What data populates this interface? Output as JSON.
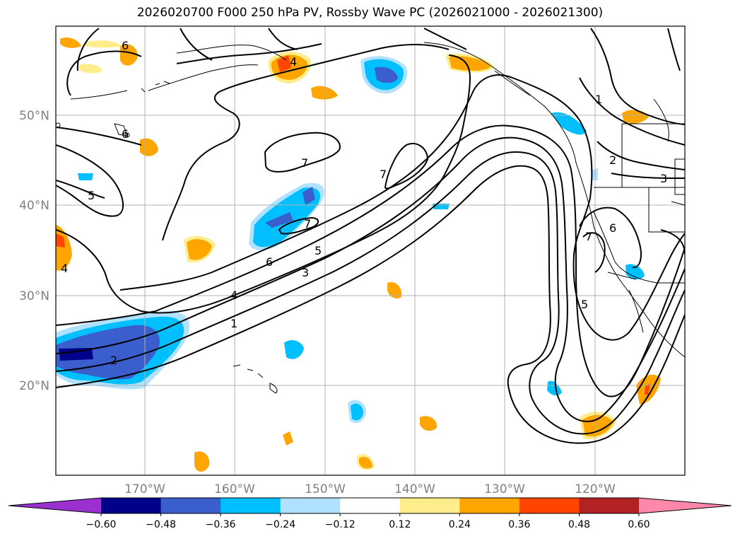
{
  "title": "2026020700 F000 250 hPa PV, Rossby Wave PC (2026021000 - 2026021300)",
  "lat_labels": [
    "50°N",
    "40°N",
    "30°N",
    "20°N"
  ],
  "lon_labels": [
    "170°W",
    "160°W",
    "150°W",
    "140°W",
    "130°W",
    "120°W"
  ],
  "contour_labels": [
    "6",
    "4",
    "6",
    "5",
    "7",
    "7",
    "7",
    "5",
    "6",
    "4",
    "3",
    "1",
    "2",
    "1",
    "2",
    "3",
    "6",
    "7",
    "5",
    "4"
  ],
  "colorbar": {
    "ticks": [
      "−0.60",
      "−0.48",
      "−0.36",
      "−0.24",
      "−0.12",
      "0.12",
      "0.24",
      "0.36",
      "0.48",
      "0.60"
    ],
    "colors": [
      "#9b30d0",
      "#00008b",
      "#3a5fcd",
      "#00bfff",
      "#b0e2ff",
      "#ffffff",
      "#ffec8b",
      "#ffa500",
      "#ff4500",
      "#b22222",
      "#ff88aa"
    ]
  }
}
